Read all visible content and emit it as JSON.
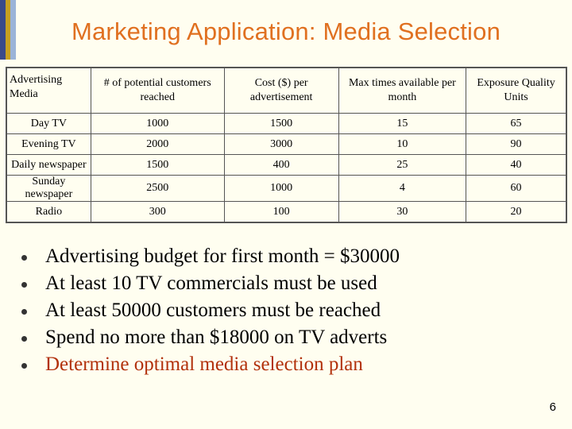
{
  "slide": {
    "title": "Marketing Application: Media Selection",
    "page_number": "6"
  },
  "table": {
    "headers": [
      "Advertising Media",
      "# of potential customers reached",
      "Cost ($) per advertisement",
      "Max times available per month",
      "Exposure Quality Units"
    ],
    "rows": [
      [
        "Day TV",
        "1000",
        "1500",
        "15",
        "65"
      ],
      [
        "Evening TV",
        "2000",
        "3000",
        "10",
        "90"
      ],
      [
        "Daily newspaper",
        "1500",
        "400",
        "25",
        "40"
      ],
      [
        "Sunday newspaper",
        "2500",
        "1000",
        "4",
        "60"
      ],
      [
        "Radio",
        "300",
        "100",
        "30",
        "20"
      ]
    ]
  },
  "bullets": [
    "Advertising budget for first month = $30000",
    "At least 10 TV commercials must be  used",
    "At least 50000 customers must be reached",
    "Spend no more than $18000 on TV adverts",
    "Determine optimal media selection plan"
  ],
  "colors": {
    "title": "#e07020",
    "highlight_bullet": "#b2310c",
    "background": "#fffef0"
  }
}
